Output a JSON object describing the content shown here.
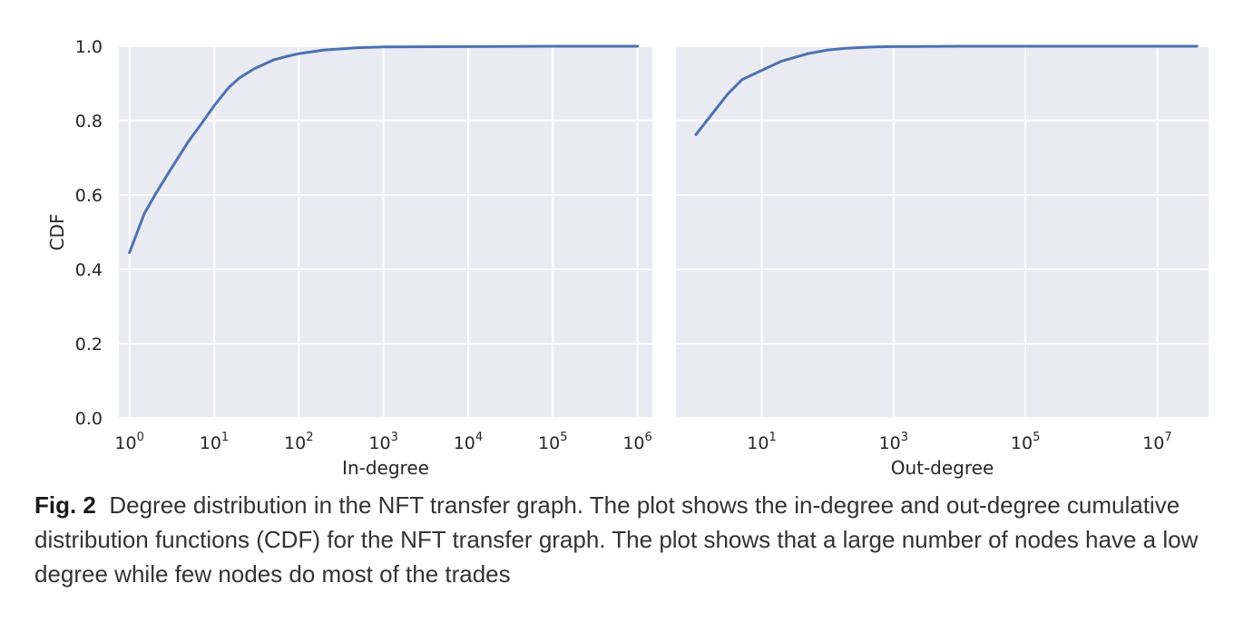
{
  "chart_data": [
    {
      "type": "line",
      "xscale": "log",
      "xlabel": "In-degree",
      "ylabel": "CDF",
      "xlim": [
        0.75,
        1500000
      ],
      "ylim": [
        0,
        1.0
      ],
      "grid": true,
      "x_ticks": [
        {
          "value": 1,
          "base": "10",
          "exp": "0"
        },
        {
          "value": 10,
          "base": "10",
          "exp": "1"
        },
        {
          "value": 100,
          "base": "10",
          "exp": "2"
        },
        {
          "value": 1000,
          "base": "10",
          "exp": "3"
        },
        {
          "value": 10000,
          "base": "10",
          "exp": "4"
        },
        {
          "value": 100000,
          "base": "10",
          "exp": "5"
        },
        {
          "value": 1000000,
          "base": "10",
          "exp": "6"
        }
      ],
      "y_ticks": [
        "0.0",
        "0.2",
        "0.4",
        "0.6",
        "0.8",
        "1.0"
      ],
      "series": [
        {
          "color": "#4c72b0",
          "x": [
            1,
            1.5,
            2,
            3,
            5,
            7,
            10,
            15,
            20,
            30,
            50,
            70,
            100,
            200,
            500,
            1000,
            10000,
            100000,
            1000000
          ],
          "y": [
            0.445,
            0.55,
            0.6,
            0.665,
            0.745,
            0.79,
            0.84,
            0.89,
            0.915,
            0.94,
            0.963,
            0.972,
            0.98,
            0.99,
            0.996,
            0.998,
            0.999,
            1.0,
            1.0
          ]
        }
      ]
    },
    {
      "type": "line",
      "xscale": "log",
      "xlabel": "Out-degree",
      "ylabel": "",
      "xlim": [
        0.5,
        60000000
      ],
      "ylim": [
        0,
        1.0
      ],
      "grid": true,
      "x_ticks": [
        {
          "value": 10,
          "base": "10",
          "exp": "1"
        },
        {
          "value": 1000,
          "base": "10",
          "exp": "3"
        },
        {
          "value": 100000,
          "base": "10",
          "exp": "5"
        },
        {
          "value": 10000000,
          "base": "10",
          "exp": "7"
        }
      ],
      "y_ticks": [
        "0.0",
        "0.2",
        "0.4",
        "0.6",
        "0.8",
        "1.0"
      ],
      "series": [
        {
          "color": "#4c72b0",
          "x": [
            1,
            2,
            3,
            5,
            10,
            20,
            50,
            100,
            200,
            500,
            1000,
            10000,
            1000000,
            40000000
          ],
          "y": [
            0.762,
            0.83,
            0.87,
            0.91,
            0.935,
            0.96,
            0.98,
            0.99,
            0.995,
            0.998,
            0.999,
            1.0,
            1.0,
            1.0
          ]
        }
      ]
    }
  ],
  "caption": {
    "label": "Fig. 2",
    "text": "Degree distribution in the NFT transfer graph. The plot shows the in-degree and out-degree cumulative distribution functions (CDF) for the NFT transfer graph. The plot shows that a large number of nodes have a low degree while few nodes do most of the trades"
  }
}
